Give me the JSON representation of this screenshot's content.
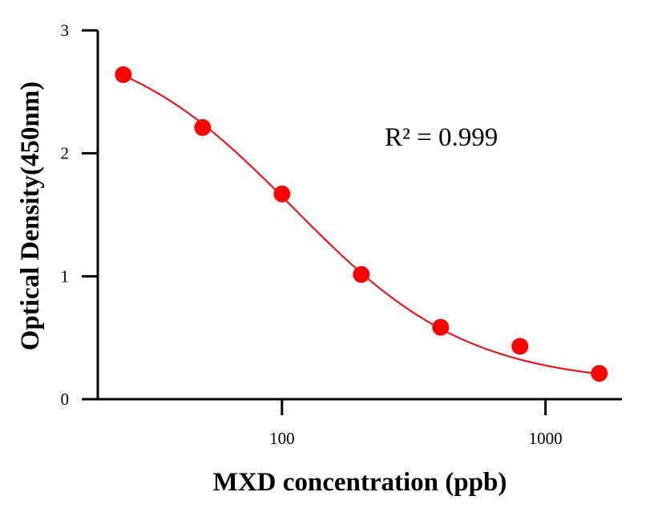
{
  "chart_data": {
    "type": "scatter",
    "title": "",
    "xlabel": "MXD concentration (ppb)",
    "ylabel": "Optical Density(450nm)",
    "xscale": "log",
    "xlim": [
      20,
      1950
    ],
    "ylim": [
      0,
      3
    ],
    "x_ticks": [
      100,
      1000
    ],
    "x_tick_labels": [
      "100",
      "1000"
    ],
    "y_ticks": [
      0,
      1,
      2,
      3
    ],
    "y_tick_labels": [
      "0",
      "1",
      "2",
      "3"
    ],
    "grid": false,
    "legend": "none",
    "annotation": "R² = 0.999",
    "series": [
      {
        "x": [
          25,
          50,
          100,
          200,
          400,
          800,
          1600
        ],
        "y": [
          2.64,
          2.21,
          1.67,
          1.015,
          0.585,
          0.43,
          0.21
        ],
        "fit": "four-parameter logistic curve",
        "color": "#ff0000",
        "line_color": "#e31a1c"
      }
    ]
  }
}
